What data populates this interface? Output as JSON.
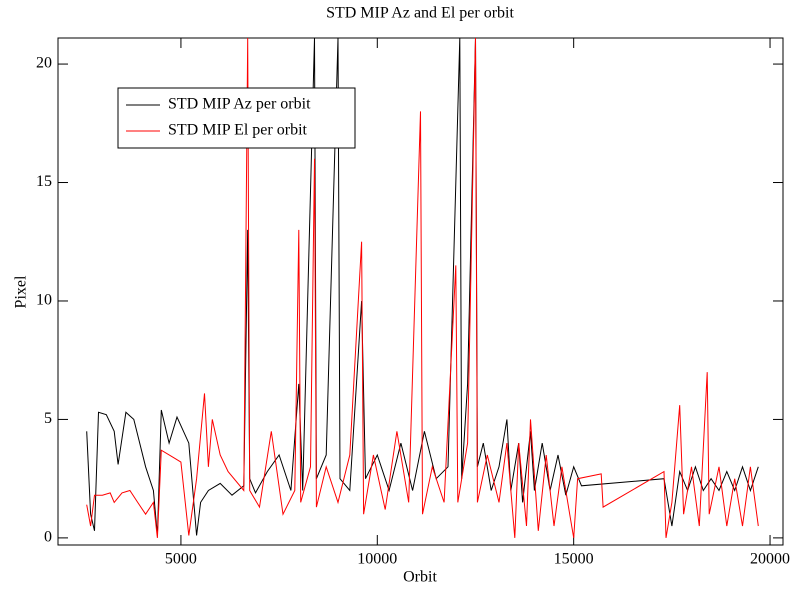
{
  "chart_data": {
    "type": "line",
    "title": "STD MIP Az and El per orbit",
    "x_label": "Orbit",
    "y_label": "Pixel",
    "xlim": [
      1870,
      20330
    ],
    "ylim": [
      -0.3,
      21.1
    ],
    "xticks": [
      5000,
      10000,
      15000,
      20000
    ],
    "yticks": [
      0,
      5,
      10,
      15,
      20
    ],
    "legend_position": "upper-left",
    "series": [
      {
        "name": "STD MIP Az per orbit",
        "color": "#000000",
        "x": [
          2600,
          2700,
          2800,
          2900,
          3100,
          3300,
          3400,
          3600,
          3800,
          4100,
          4300,
          4400,
          4500,
          4700,
          4900,
          5200,
          5400,
          5500,
          5700,
          6000,
          6300,
          6600,
          6700,
          6750,
          6900,
          7200,
          7500,
          7800,
          8000,
          8100,
          8400,
          8450,
          8700,
          9000,
          9050,
          9300,
          9600,
          9700,
          10000,
          10300,
          10600,
          10900,
          11200,
          11500,
          11800,
          12100,
          12150,
          12300,
          12500,
          12550,
          12700,
          12900,
          13100,
          13300,
          13400,
          13600,
          13700,
          13900,
          14000,
          14200,
          14400,
          14600,
          14800,
          15000,
          15200,
          17300,
          17500,
          17700,
          17900,
          18100,
          18300,
          18500,
          18700,
          18900,
          19100,
          19300,
          19500,
          19700
        ],
        "values": [
          4.5,
          1.0,
          0.3,
          5.3,
          5.2,
          4.5,
          3.1,
          5.3,
          5.0,
          3.0,
          2.0,
          0.1,
          5.4,
          4.0,
          5.1,
          4.0,
          0.1,
          1.5,
          2.0,
          2.3,
          1.8,
          2.2,
          13,
          2.5,
          1.9,
          2.8,
          3.5,
          2.0,
          6.5,
          2.0,
          21.1,
          2.5,
          3.5,
          21.1,
          2.5,
          2.0,
          10,
          2.5,
          3.5,
          2.0,
          4.0,
          2.0,
          4.5,
          2.5,
          3.0,
          21.1,
          2.5,
          6.5,
          21.1,
          3,
          4,
          2,
          3,
          5,
          2,
          4,
          1.5,
          4.5,
          2,
          4,
          2,
          3.5,
          1.8,
          3,
          2.2,
          2.5,
          0.5,
          2.8,
          2,
          3,
          2,
          2.5,
          2,
          2.8,
          2,
          3,
          2,
          3
        ]
      },
      {
        "name": "STD MIP El per orbit",
        "color": "#ff0000",
        "x": [
          2600,
          2700,
          2800,
          3000,
          3200,
          3300,
          3500,
          3700,
          3900,
          4100,
          4300,
          4400,
          4500,
          4800,
          5000,
          5200,
          5400,
          5600,
          5700,
          5800,
          6000,
          6200,
          6600,
          6700,
          6750,
          7000,
          7300,
          7600,
          7900,
          8000,
          8050,
          8300,
          8400,
          8450,
          8700,
          9000,
          9300,
          9600,
          9650,
          9900,
          10200,
          10500,
          10800,
          11100,
          11150,
          11400,
          11700,
          12000,
          12050,
          12300,
          12500,
          12550,
          12800,
          13100,
          13300,
          13500,
          13600,
          13800,
          13900,
          14100,
          14300,
          14500,
          14700,
          14900,
          15000,
          15100,
          15700,
          15750,
          17300,
          17350,
          17500,
          17700,
          17800,
          18000,
          18200,
          18400,
          18450,
          18700,
          18900,
          19100,
          19300,
          19500,
          19700
        ],
        "values": [
          1.4,
          0.5,
          1.8,
          1.8,
          1.9,
          1.5,
          1.9,
          2.0,
          1.5,
          1.0,
          1.5,
          0,
          3.7,
          3.4,
          3.2,
          0.1,
          2.5,
          6.1,
          3,
          5,
          3.5,
          2.8,
          2.0,
          21.1,
          2.0,
          1.3,
          4.5,
          1.0,
          2.0,
          13.0,
          1.5,
          3.0,
          16,
          1.3,
          3,
          1.5,
          3.5,
          12.5,
          1.0,
          3.5,
          1.2,
          4.5,
          1.5,
          18,
          1.0,
          3,
          1.5,
          11.5,
          1.5,
          4,
          21.1,
          1.5,
          3.5,
          1.5,
          4,
          0,
          4,
          0.5,
          5,
          0.3,
          3.5,
          0.5,
          3,
          1,
          0,
          2.5,
          2.7,
          1.3,
          2.8,
          0,
          1.5,
          5.6,
          1.0,
          3,
          0.5,
          7,
          1,
          3,
          0.5,
          2.5,
          0.5,
          3,
          0.5
        ]
      }
    ]
  }
}
